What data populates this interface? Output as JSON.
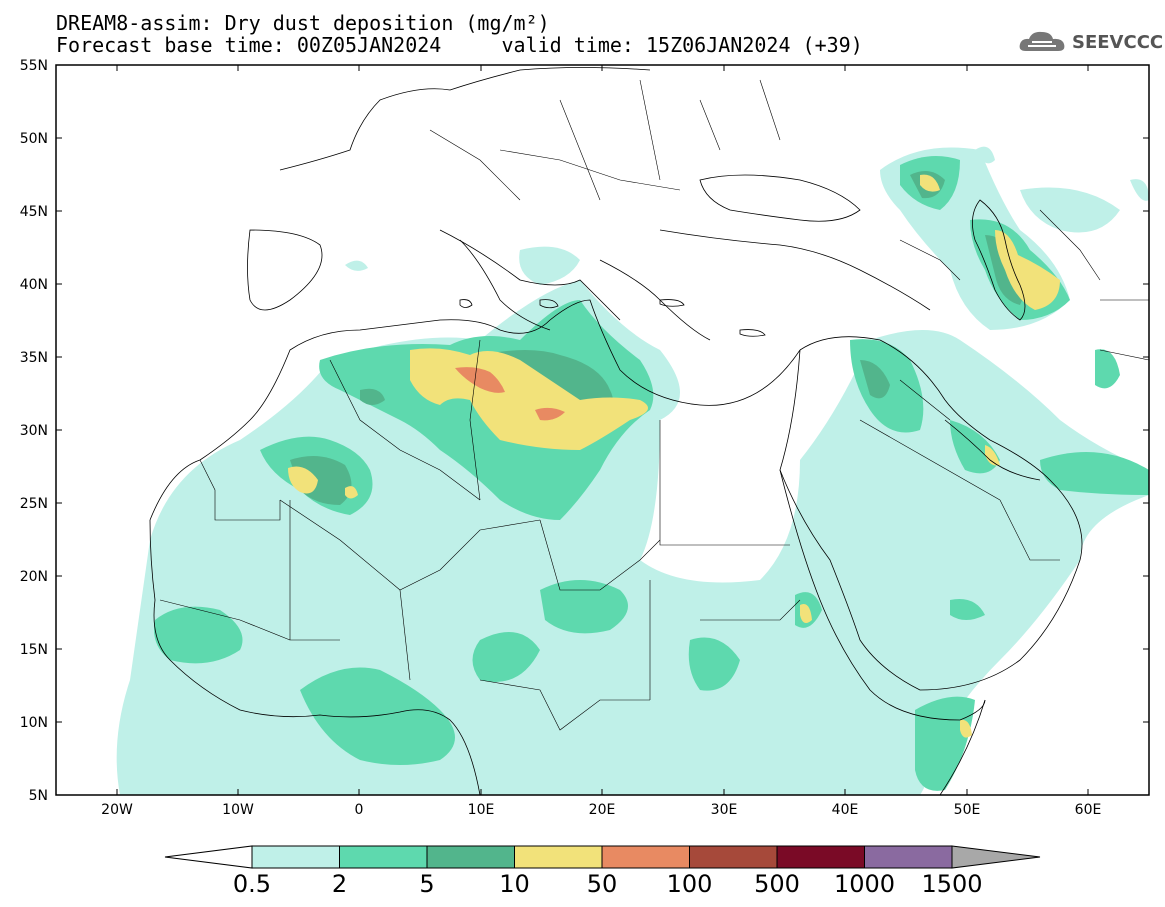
{
  "header": {
    "title_line1": "DREAM8-assim: Dry dust deposition (mg/m²)",
    "title_line2": "Forecast base time: 00Z05JAN2024     valid time: 15Z06JAN2024 (+39)",
    "logo_text": "SEEVCCC"
  },
  "map": {
    "lon_range": [
      -25,
      65
    ],
    "lat_range": [
      5,
      55
    ],
    "lat_labels": [
      "55N",
      "50N",
      "45N",
      "40N",
      "35N",
      "30N",
      "25N",
      "20N",
      "15N",
      "10N",
      "5N"
    ],
    "lon_labels": [
      "20W",
      "10W",
      "0",
      "10E",
      "20E",
      "30E",
      "40E",
      "50E",
      "60E"
    ]
  },
  "colorbar": {
    "labels": [
      "0.5",
      "2",
      "5",
      "10",
      "50",
      "100",
      "500",
      "1000",
      "1500"
    ],
    "colors": [
      "#bff0e8",
      "#5ed9ae",
      "#52b58c",
      "#f2e27a",
      "#e88a62",
      "#a6493a",
      "#7a0a26",
      "#8a6aa0",
      "#a8a8a8"
    ]
  }
}
